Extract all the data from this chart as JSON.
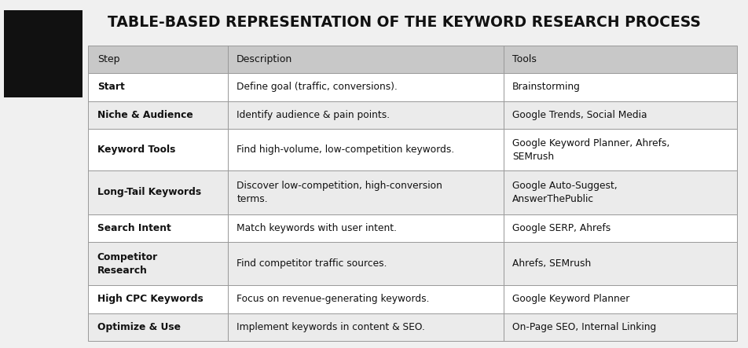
{
  "title": "TABLE-BASED REPRESENTATION OF THE KEYWORD RESEARCH PROCESS",
  "title_fontsize": 13.5,
  "bg_color": "#f0f0f0",
  "header_bg": "#c8c8c8",
  "row_odd_bg": "#ffffff",
  "row_even_bg": "#ebebeb",
  "border_color": "#999999",
  "header_row": [
    "Step",
    "Description",
    "Tools"
  ],
  "rows": [
    [
      "Start",
      "Define goal (traffic, conversions).",
      "Brainstorming"
    ],
    [
      "Niche & Audience",
      "Identify audience & pain points.",
      "Google Trends, Social Media"
    ],
    [
      "Keyword Tools",
      "Find high-volume, low-competition keywords.",
      "Google Keyword Planner, Ahrefs,\nSEMrush"
    ],
    [
      "Long-Tail Keywords",
      "Discover low-competition, high-conversion\nterms.",
      "Google Auto-Suggest,\nAnswerThePublic"
    ],
    [
      "Search Intent",
      "Match keywords with user intent.",
      "Google SERP, Ahrefs"
    ],
    [
      "Competitor\nResearch",
      "Find competitor traffic sources.",
      "Ahrefs, SEMrush"
    ],
    [
      "High CPC Keywords",
      "Focus on revenue-generating keywords.",
      "Google Keyword Planner"
    ],
    [
      "Optimize & Use",
      "Implement keywords in content & SEO.",
      "On-Page SEO, Internal Linking"
    ]
  ],
  "logo_bg": "#111111",
  "logo_green": "#22cc00",
  "text_color": "#111111"
}
